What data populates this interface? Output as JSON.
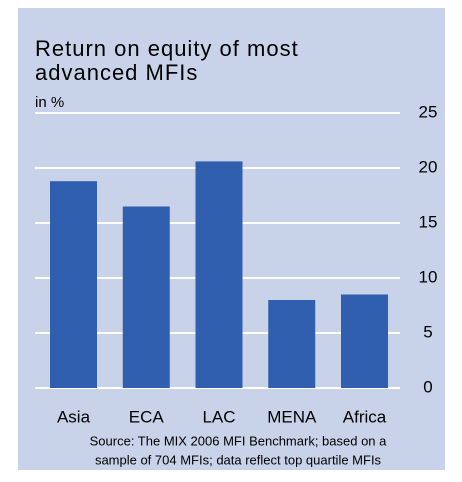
{
  "chart_data": {
    "type": "bar",
    "title": [
      "Return on equity of most",
      "advanced MFIs"
    ],
    "y_label": "in %",
    "categories": [
      "Asia",
      "ECA",
      "LAC",
      "MENA",
      "Africa"
    ],
    "values": [
      18.8,
      16.5,
      20.6,
      8,
      8.5
    ],
    "color": "#2f5fae",
    "ylim": [
      0,
      25
    ],
    "yticks": [
      0,
      5,
      10,
      15,
      20,
      25
    ],
    "grid": true,
    "source": [
      "Source: The MIX 2006 MFI Benchmark; based on a",
      "sample of 704 MFIs; data reflect top quartile MFIs"
    ]
  }
}
